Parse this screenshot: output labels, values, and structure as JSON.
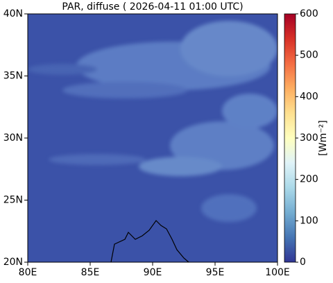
{
  "chart_data": {
    "type": "map",
    "title": "PAR, diffuse ( 2026-04-11 01:00 UTC)",
    "xlim": [
      80,
      100
    ],
    "ylim": [
      20,
      40
    ],
    "xticks": [
      {
        "value": 80,
        "label": "80E"
      },
      {
        "value": 85,
        "label": "85E"
      },
      {
        "value": 90,
        "label": "90E"
      },
      {
        "value": 95,
        "label": "95E"
      },
      {
        "value": 100,
        "label": "100E"
      }
    ],
    "yticks": [
      {
        "value": 20,
        "label": "20N"
      },
      {
        "value": 25,
        "label": "25N"
      },
      {
        "value": 30,
        "label": "30N"
      },
      {
        "value": 35,
        "label": "35N"
      },
      {
        "value": 40,
        "label": "40N"
      }
    ],
    "colorbar": {
      "label": "[Wm⁻²]",
      "lim": [
        0,
        600
      ],
      "ticks": [
        0,
        100,
        200,
        300,
        400,
        500,
        600
      ],
      "colors": [
        "#313695",
        "#4575b4",
        "#74add1",
        "#abd9e9",
        "#e0f3f8",
        "#ffffbf",
        "#fee090",
        "#fdae61",
        "#f46d43",
        "#d73027",
        "#a50026"
      ]
    }
  }
}
